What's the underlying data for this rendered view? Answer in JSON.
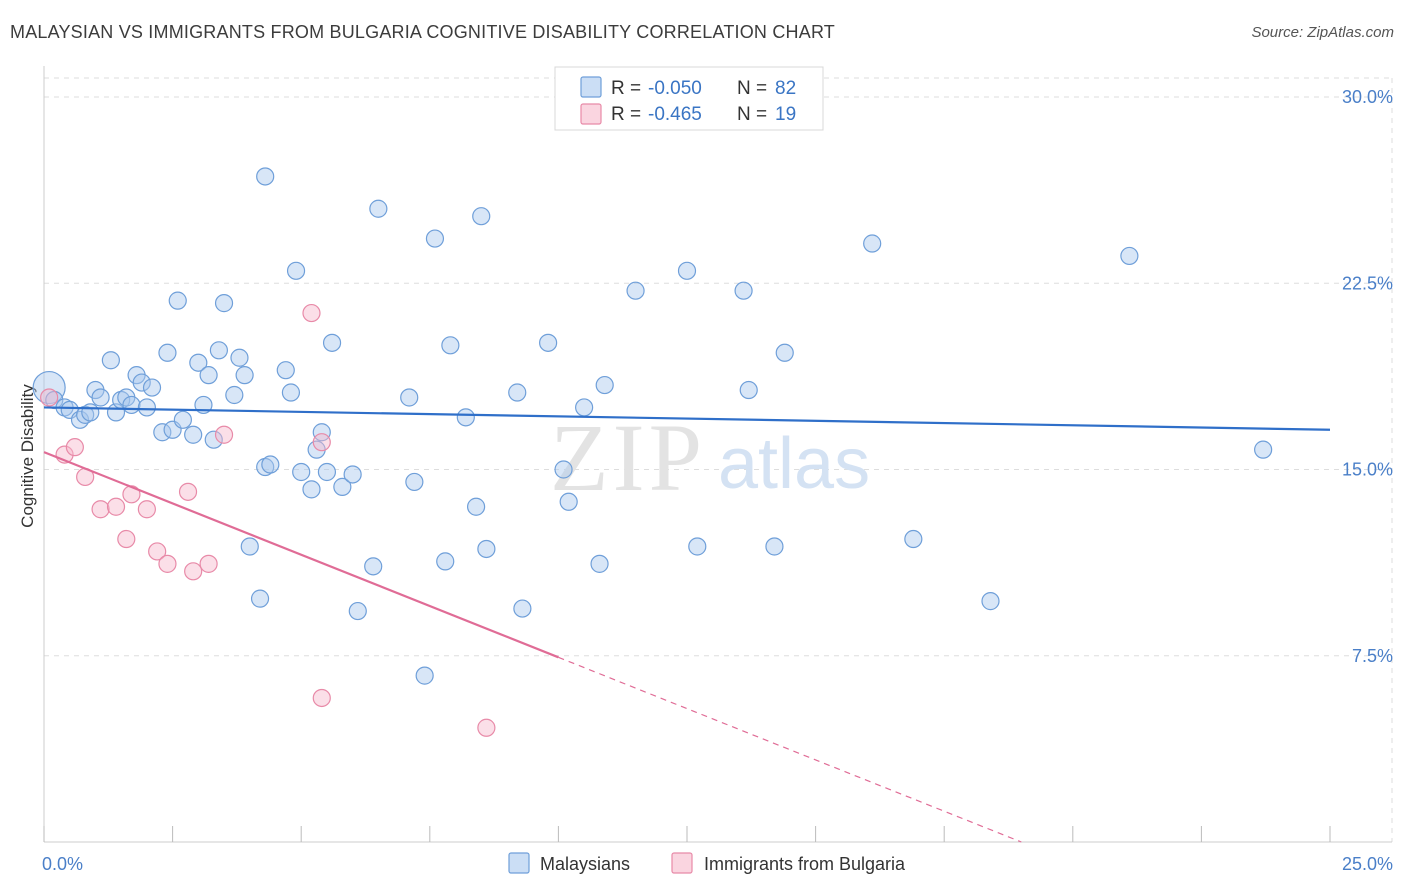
{
  "title": "MALAYSIAN VS IMMIGRANTS FROM BULGARIA COGNITIVE DISABILITY CORRELATION CHART",
  "source": "Source: ZipAtlas.com",
  "watermark": {
    "zip": "ZIP",
    "atlas": "atlas"
  },
  "colors": {
    "blue_fill": "#a9c8ee",
    "blue_stroke": "#6f9fd9",
    "blue_line": "#2f6fc9",
    "pink_fill": "#f6b9cb",
    "pink_stroke": "#e88aa8",
    "pink_line": "#e06c96",
    "grid": "#dddddd",
    "tick_label": "#4a7fc8"
  },
  "legend": {
    "rows": [
      {
        "r_label": "R = ",
        "r_value": "-0.050",
        "n_label": "N = ",
        "n_value": "82",
        "series": "blue"
      },
      {
        "r_label": "R = ",
        "r_value": "-0.465",
        "n_label": "N = ",
        "n_value": "19",
        "series": "pink"
      }
    ]
  },
  "bottom_legend": {
    "items": [
      {
        "label": "Malaysians",
        "series": "blue"
      },
      {
        "label": "Immigrants from Bulgaria",
        "series": "pink"
      }
    ]
  },
  "chart_data": {
    "type": "scatter",
    "title": "MALAYSIAN VS IMMIGRANTS FROM BULGARIA COGNITIVE DISABILITY CORRELATION CHART",
    "xlabel": "",
    "ylabel": "Cognitive Disability",
    "xlim": [
      0,
      25
    ],
    "ylim": [
      0,
      30
    ],
    "x_tick_labels": [
      "0.0%",
      "25.0%"
    ],
    "y_ticks": [
      {
        "value": 7.5,
        "label": "7.5%"
      },
      {
        "value": 15.0,
        "label": "15.0%"
      },
      {
        "value": 22.5,
        "label": "22.5%"
      },
      {
        "value": 30.0,
        "label": "30.0%"
      }
    ],
    "series": [
      {
        "name": "Malaysians",
        "color": "blue",
        "R": -0.05,
        "N": 82,
        "trend": {
          "x": [
            0,
            25
          ],
          "y": [
            17.5,
            16.6
          ],
          "dashed_from": null
        },
        "points": [
          {
            "x": 0.1,
            "y": 18.3,
            "big": true
          },
          {
            "x": 0.2,
            "y": 17.8
          },
          {
            "x": 0.4,
            "y": 17.5
          },
          {
            "x": 0.5,
            "y": 17.4
          },
          {
            "x": 0.7,
            "y": 17.0
          },
          {
            "x": 0.8,
            "y": 17.2
          },
          {
            "x": 0.9,
            "y": 17.3
          },
          {
            "x": 1.0,
            "y": 18.2
          },
          {
            "x": 1.1,
            "y": 17.9
          },
          {
            "x": 1.3,
            "y": 19.4
          },
          {
            "x": 1.4,
            "y": 17.3
          },
          {
            "x": 1.5,
            "y": 17.8
          },
          {
            "x": 1.6,
            "y": 17.9
          },
          {
            "x": 1.7,
            "y": 17.6
          },
          {
            "x": 1.8,
            "y": 18.8
          },
          {
            "x": 1.9,
            "y": 18.5
          },
          {
            "x": 2.0,
            "y": 17.5
          },
          {
            "x": 2.1,
            "y": 18.3
          },
          {
            "x": 2.3,
            "y": 16.5
          },
          {
            "x": 2.4,
            "y": 19.7
          },
          {
            "x": 2.5,
            "y": 16.6
          },
          {
            "x": 2.6,
            "y": 21.8
          },
          {
            "x": 2.7,
            "y": 17.0
          },
          {
            "x": 2.9,
            "y": 16.4
          },
          {
            "x": 3.0,
            "y": 19.3
          },
          {
            "x": 3.1,
            "y": 17.6
          },
          {
            "x": 3.2,
            "y": 18.8
          },
          {
            "x": 3.3,
            "y": 16.2
          },
          {
            "x": 3.4,
            "y": 19.8
          },
          {
            "x": 3.5,
            "y": 21.7
          },
          {
            "x": 3.7,
            "y": 18.0
          },
          {
            "x": 3.8,
            "y": 19.5
          },
          {
            "x": 3.9,
            "y": 18.8
          },
          {
            "x": 4.0,
            "y": 11.9
          },
          {
            "x": 4.2,
            "y": 9.8
          },
          {
            "x": 4.3,
            "y": 26.8
          },
          {
            "x": 4.3,
            "y": 15.1
          },
          {
            "x": 4.4,
            "y": 15.2
          },
          {
            "x": 4.7,
            "y": 19.0
          },
          {
            "x": 4.8,
            "y": 18.1
          },
          {
            "x": 4.9,
            "y": 23.0
          },
          {
            "x": 5.0,
            "y": 14.9
          },
          {
            "x": 5.2,
            "y": 14.2
          },
          {
            "x": 5.3,
            "y": 15.8
          },
          {
            "x": 5.4,
            "y": 16.5
          },
          {
            "x": 5.5,
            "y": 14.9
          },
          {
            "x": 5.6,
            "y": 20.1
          },
          {
            "x": 5.8,
            "y": 14.3
          },
          {
            "x": 6.0,
            "y": 14.8
          },
          {
            "x": 6.1,
            "y": 9.3
          },
          {
            "x": 6.4,
            "y": 11.1
          },
          {
            "x": 6.5,
            "y": 25.5
          },
          {
            "x": 7.1,
            "y": 17.9
          },
          {
            "x": 7.2,
            "y": 14.5
          },
          {
            "x": 7.4,
            "y": 6.7
          },
          {
            "x": 7.6,
            "y": 24.3
          },
          {
            "x": 7.8,
            "y": 11.3
          },
          {
            "x": 7.9,
            "y": 20.0
          },
          {
            "x": 8.2,
            "y": 17.1
          },
          {
            "x": 8.4,
            "y": 13.5
          },
          {
            "x": 8.5,
            "y": 25.2
          },
          {
            "x": 8.6,
            "y": 11.8
          },
          {
            "x": 9.2,
            "y": 18.1
          },
          {
            "x": 9.3,
            "y": 9.4
          },
          {
            "x": 9.8,
            "y": 20.1
          },
          {
            "x": 10.1,
            "y": 15.0
          },
          {
            "x": 10.2,
            "y": 13.7
          },
          {
            "x": 10.5,
            "y": 17.5
          },
          {
            "x": 10.8,
            "y": 11.2
          },
          {
            "x": 10.9,
            "y": 18.4
          },
          {
            "x": 11.5,
            "y": 22.2
          },
          {
            "x": 12.5,
            "y": 23.0
          },
          {
            "x": 12.7,
            "y": 11.9
          },
          {
            "x": 13.6,
            "y": 22.2
          },
          {
            "x": 13.7,
            "y": 18.2
          },
          {
            "x": 14.2,
            "y": 11.9
          },
          {
            "x": 14.4,
            "y": 19.7
          },
          {
            "x": 16.1,
            "y": 24.1
          },
          {
            "x": 16.9,
            "y": 12.2
          },
          {
            "x": 18.4,
            "y": 9.7
          },
          {
            "x": 21.1,
            "y": 23.6
          },
          {
            "x": 23.7,
            "y": 15.8
          }
        ]
      },
      {
        "name": "Immigrants from Bulgaria",
        "color": "pink",
        "R": -0.465,
        "N": 19,
        "trend": {
          "x": [
            0,
            19.0
          ],
          "y": [
            15.7,
            0.0
          ],
          "dashed_from": 10.0
        },
        "points": [
          {
            "x": 0.1,
            "y": 17.9
          },
          {
            "x": 0.4,
            "y": 15.6
          },
          {
            "x": 0.6,
            "y": 15.9
          },
          {
            "x": 0.8,
            "y": 14.7
          },
          {
            "x": 1.1,
            "y": 13.4
          },
          {
            "x": 1.4,
            "y": 13.5
          },
          {
            "x": 1.6,
            "y": 12.2
          },
          {
            "x": 1.7,
            "y": 14.0
          },
          {
            "x": 2.0,
            "y": 13.4
          },
          {
            "x": 2.2,
            "y": 11.7
          },
          {
            "x": 2.4,
            "y": 11.2
          },
          {
            "x": 2.8,
            "y": 14.1
          },
          {
            "x": 2.9,
            "y": 10.9
          },
          {
            "x": 3.2,
            "y": 11.2
          },
          {
            "x": 3.5,
            "y": 16.4
          },
          {
            "x": 5.2,
            "y": 21.3
          },
          {
            "x": 5.4,
            "y": 16.1
          },
          {
            "x": 5.4,
            "y": 5.8
          },
          {
            "x": 8.6,
            "y": 4.6
          }
        ]
      }
    ]
  }
}
